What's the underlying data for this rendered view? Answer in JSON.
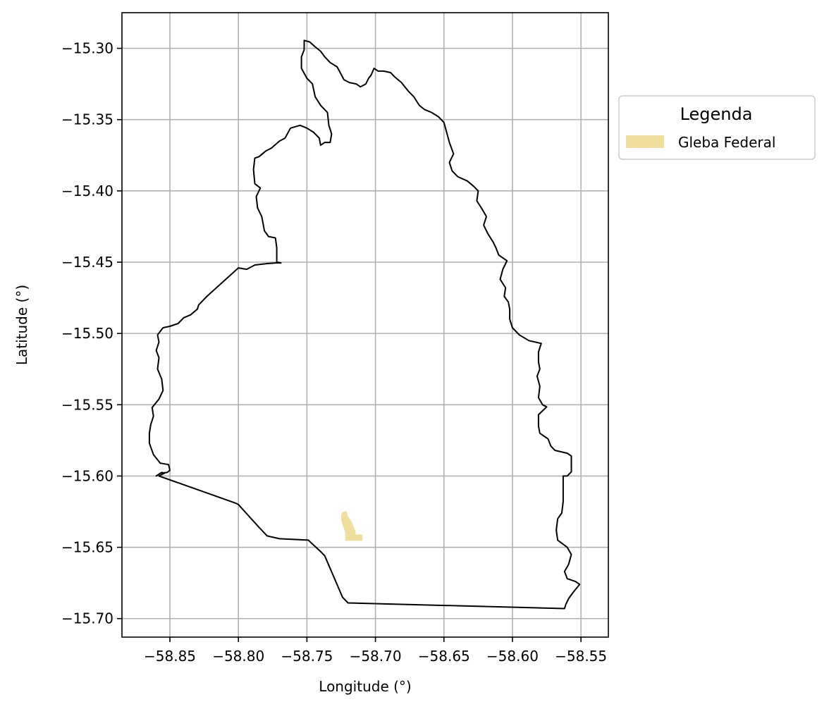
{
  "chart_data": {
    "type": "map",
    "title": "",
    "xlabel": "Longitude (°)",
    "ylabel": "Latitude (°)",
    "xlim": [
      -58.885,
      -58.53
    ],
    "ylim": [
      -15.713,
      -15.275
    ],
    "grid": true,
    "x_ticks": [
      -58.85,
      -58.8,
      -58.75,
      -58.7,
      -58.65,
      -58.6,
      -58.55
    ],
    "x_tick_labels": [
      "−58.85",
      "−58.80",
      "−58.75",
      "−58.70",
      "−58.65",
      "−58.60",
      "−58.55"
    ],
    "y_ticks": [
      -15.3,
      -15.35,
      -15.4,
      -15.45,
      -15.5,
      -15.55,
      -15.6,
      -15.65,
      -15.7
    ],
    "y_tick_labels": [
      "−15.30",
      "−15.35",
      "−15.40",
      "−15.45",
      "−15.50",
      "−15.55",
      "−15.60",
      "−15.65",
      "−15.70"
    ],
    "legend": {
      "title": "Legenda",
      "placement": "outside-right-top",
      "entries": [
        {
          "label": "Gleba Federal",
          "color": "#f0df9c"
        }
      ]
    },
    "colors": {
      "boundary": "#000000",
      "gleba": "#f0df9c",
      "grid": "#b0b0b0"
    },
    "boundary": [
      [
        -58.752,
        -15.2945
      ],
      [
        -58.748,
        -15.2955
      ],
      [
        -58.744,
        -15.299
      ],
      [
        -58.74,
        -15.302
      ],
      [
        -58.737,
        -15.306
      ],
      [
        -58.733,
        -15.31
      ],
      [
        -58.728,
        -15.313
      ],
      [
        -58.726,
        -15.3165
      ],
      [
        -58.723,
        -15.322
      ],
      [
        -58.719,
        -15.324
      ],
      [
        -58.714,
        -15.325
      ],
      [
        -58.711,
        -15.327
      ],
      [
        -58.707,
        -15.325
      ],
      [
        -58.705,
        -15.321
      ],
      [
        -58.703,
        -15.3185
      ],
      [
        -58.701,
        -15.314
      ],
      [
        -58.698,
        -15.316
      ],
      [
        -58.694,
        -15.316
      ],
      [
        -58.689,
        -15.317
      ],
      [
        -58.686,
        -15.32
      ],
      [
        -58.681,
        -15.324
      ],
      [
        -58.676,
        -15.33
      ],
      [
        -58.672,
        -15.334
      ],
      [
        -58.668,
        -15.34
      ],
      [
        -58.664,
        -15.343
      ],
      [
        -58.659,
        -15.345
      ],
      [
        -58.654,
        -15.348
      ],
      [
        -58.65,
        -15.352
      ],
      [
        -58.648,
        -15.359
      ],
      [
        -58.646,
        -15.366
      ],
      [
        -58.643,
        -15.374
      ],
      [
        -58.646,
        -15.38
      ],
      [
        -58.644,
        -15.386
      ],
      [
        -58.64,
        -15.39
      ],
      [
        -58.633,
        -15.393
      ],
      [
        -58.628,
        -15.397
      ],
      [
        -58.625,
        -15.4
      ],
      [
        -58.626,
        -15.407
      ],
      [
        -58.622,
        -15.413
      ],
      [
        -58.619,
        -15.418
      ],
      [
        -58.621,
        -15.424
      ],
      [
        -58.618,
        -15.43
      ],
      [
        -58.614,
        -15.436
      ],
      [
        -58.612,
        -15.44
      ],
      [
        -58.61,
        -15.445
      ],
      [
        -58.604,
        -15.449
      ],
      [
        -58.607,
        -15.455
      ],
      [
        -58.609,
        -15.462
      ],
      [
        -58.605,
        -15.468
      ],
      [
        -58.606,
        -15.474
      ],
      [
        -58.603,
        -15.478
      ],
      [
        -58.602,
        -15.483
      ],
      [
        -58.602,
        -15.49
      ],
      [
        -58.6,
        -15.496
      ],
      [
        -58.595,
        -15.501
      ],
      [
        -58.588,
        -15.505
      ],
      [
        -58.579,
        -15.507
      ],
      [
        -58.581,
        -15.513
      ],
      [
        -58.581,
        -15.52
      ],
      [
        -58.58,
        -15.525
      ],
      [
        -58.582,
        -15.53
      ],
      [
        -58.58,
        -15.537
      ],
      [
        -58.581,
        -15.545
      ],
      [
        -58.578,
        -15.55
      ],
      [
        -58.575,
        -15.5515
      ],
      [
        -58.581,
        -15.557
      ],
      [
        -58.581,
        -15.565
      ],
      [
        -58.58,
        -15.57
      ],
      [
        -58.574,
        -15.574
      ],
      [
        -58.572,
        -15.579
      ],
      [
        -58.569,
        -15.582
      ],
      [
        -58.56,
        -15.584
      ],
      [
        -58.557,
        -15.586
      ],
      [
        -58.557,
        -15.592
      ],
      [
        -58.557,
        -15.597
      ],
      [
        -58.56,
        -15.6
      ],
      [
        -58.563,
        -15.6
      ],
      [
        -58.563,
        -15.61
      ],
      [
        -58.563,
        -15.618
      ],
      [
        -58.564,
        -15.626
      ],
      [
        -58.567,
        -15.63
      ],
      [
        -58.568,
        -15.638
      ],
      [
        -58.567,
        -15.645
      ],
      [
        -58.56,
        -15.65
      ],
      [
        -58.557,
        -15.655
      ],
      [
        -58.559,
        -15.662
      ],
      [
        -58.562,
        -15.667
      ],
      [
        -58.56,
        -15.672
      ],
      [
        -58.554,
        -15.674
      ],
      [
        -58.551,
        -15.676
      ],
      [
        -58.556,
        -15.682
      ],
      [
        -58.559,
        -15.686
      ],
      [
        -58.561,
        -15.69
      ],
      [
        -58.562,
        -15.693
      ],
      [
        -58.72,
        -15.689
      ],
      [
        -58.724,
        -15.685
      ],
      [
        -58.737,
        -15.656
      ],
      [
        -58.74,
        -15.653
      ],
      [
        -58.749,
        -15.645
      ],
      [
        -58.77,
        -15.644
      ],
      [
        -58.779,
        -15.642
      ],
      [
        -58.785,
        -15.636
      ],
      [
        -58.8,
        -15.62
      ],
      [
        -58.802,
        -15.619
      ],
      [
        -58.858,
        -15.6
      ],
      [
        -58.854,
        -15.598
      ],
      [
        -58.856,
        -15.5975
      ],
      [
        -58.86,
        -15.6
      ],
      [
        -58.857,
        -15.598
      ],
      [
        -58.852,
        -15.5975
      ],
      [
        -58.85,
        -15.596
      ],
      [
        -58.851,
        -15.592
      ],
      [
        -58.857,
        -15.591
      ],
      [
        -58.862,
        -15.585
      ],
      [
        -58.865,
        -15.577
      ],
      [
        -58.865,
        -15.57
      ],
      [
        -58.864,
        -15.564
      ],
      [
        -58.862,
        -15.558
      ],
      [
        -58.863,
        -15.552
      ],
      [
        -58.858,
        -15.546
      ],
      [
        -58.855,
        -15.54
      ],
      [
        -58.856,
        -15.532
      ],
      [
        -58.859,
        -15.525
      ],
      [
        -58.858,
        -15.517
      ],
      [
        -58.86,
        -15.512
      ],
      [
        -58.858,
        -15.506
      ],
      [
        -58.859,
        -15.501
      ],
      [
        -58.855,
        -15.496
      ],
      [
        -58.85,
        -15.495
      ],
      [
        -58.844,
        -15.493
      ],
      [
        -58.84,
        -15.489
      ],
      [
        -58.835,
        -15.487
      ],
      [
        -58.83,
        -15.483
      ],
      [
        -58.829,
        -15.48
      ],
      [
        -58.823,
        -15.474
      ],
      [
        -58.8,
        -15.454
      ],
      [
        -58.794,
        -15.455
      ],
      [
        -58.788,
        -15.452
      ],
      [
        -58.779,
        -15.451
      ],
      [
        -58.772,
        -15.4505
      ],
      [
        -58.769,
        -15.4505
      ],
      [
        -58.772,
        -15.45
      ],
      [
        -58.772,
        -15.44
      ],
      [
        -58.773,
        -15.433
      ],
      [
        -58.778,
        -15.432
      ],
      [
        -58.781,
        -15.428
      ],
      [
        -58.783,
        -15.418
      ],
      [
        -58.786,
        -15.412
      ],
      [
        -58.787,
        -15.404
      ],
      [
        -58.784,
        -15.398
      ],
      [
        -58.788,
        -15.395
      ],
      [
        -58.789,
        -15.385
      ],
      [
        -58.788,
        -15.377
      ],
      [
        -58.785,
        -15.376
      ],
      [
        -58.78,
        -15.372
      ],
      [
        -58.776,
        -15.37
      ],
      [
        -58.77,
        -15.365
      ],
      [
        -58.766,
        -15.363
      ],
      [
        -58.762,
        -15.356
      ],
      [
        -58.755,
        -15.354
      ],
      [
        -58.75,
        -15.356
      ],
      [
        -58.745,
        -15.359
      ],
      [
        -58.741,
        -15.363
      ],
      [
        -58.74,
        -15.368
      ],
      [
        -58.737,
        -15.366
      ],
      [
        -58.733,
        -15.366
      ],
      [
        -58.732,
        -15.36
      ],
      [
        -58.734,
        -15.354
      ],
      [
        -58.735,
        -15.345
      ],
      [
        -58.74,
        -15.34
      ],
      [
        -58.744,
        -15.334
      ],
      [
        -58.746,
        -15.325
      ],
      [
        -58.75,
        -15.321
      ],
      [
        -58.754,
        -15.314
      ],
      [
        -58.754,
        -15.306
      ],
      [
        -58.752,
        -15.301
      ],
      [
        -58.752,
        -15.2945
      ]
    ],
    "gleba": [
      [
        -58.7235,
        -15.6255
      ],
      [
        -58.7215,
        -15.6253
      ],
      [
        -58.7205,
        -15.6285
      ],
      [
        -58.718,
        -15.632
      ],
      [
        -58.7165,
        -15.6355
      ],
      [
        -58.715,
        -15.639
      ],
      [
        -58.715,
        -15.6415
      ],
      [
        -58.71,
        -15.6415
      ],
      [
        -58.71,
        -15.645
      ],
      [
        -58.7215,
        -15.645
      ],
      [
        -58.7215,
        -15.6395
      ],
      [
        -58.723,
        -15.6355
      ],
      [
        -58.7245,
        -15.631
      ],
      [
        -58.7245,
        -15.6275
      ]
    ]
  }
}
